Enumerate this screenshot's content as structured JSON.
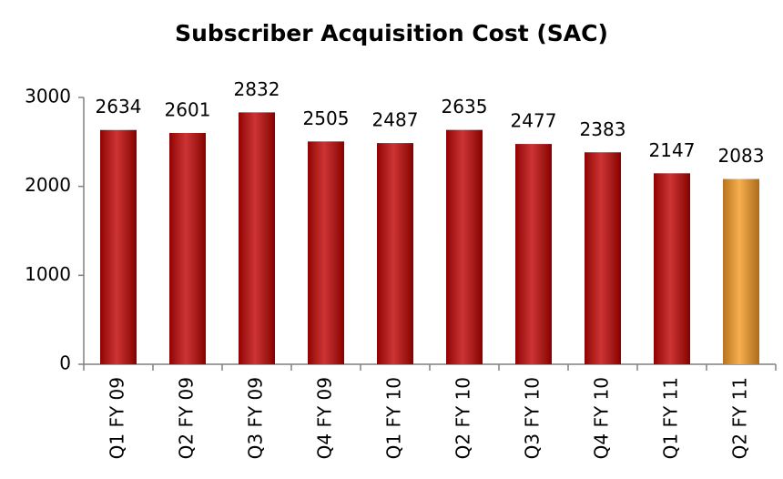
{
  "chart_data": {
    "type": "bar",
    "title": "Subscriber Acquisition Cost (SAC)",
    "categories": [
      "Q1 FY 09",
      "Q2 FY 09",
      "Q3 FY 09",
      "Q4 FY 09",
      "Q1 FY 10",
      "Q2 FY 10",
      "Q3 FY 10",
      "Q4 FY 10",
      "Q1 FY 11",
      "Q2 FY 11"
    ],
    "values": [
      2634,
      2601,
      2832,
      2505,
      2487,
      2635,
      2477,
      2383,
      2147,
      2083
    ],
    "colors": [
      "#c00000",
      "#c00000",
      "#c00000",
      "#c00000",
      "#c00000",
      "#c00000",
      "#c00000",
      "#c00000",
      "#c00000",
      "#f59a23"
    ],
    "ylim": [
      0,
      3000
    ],
    "yticks": [
      0,
      1000,
      2000,
      3000
    ],
    "grid": false
  }
}
